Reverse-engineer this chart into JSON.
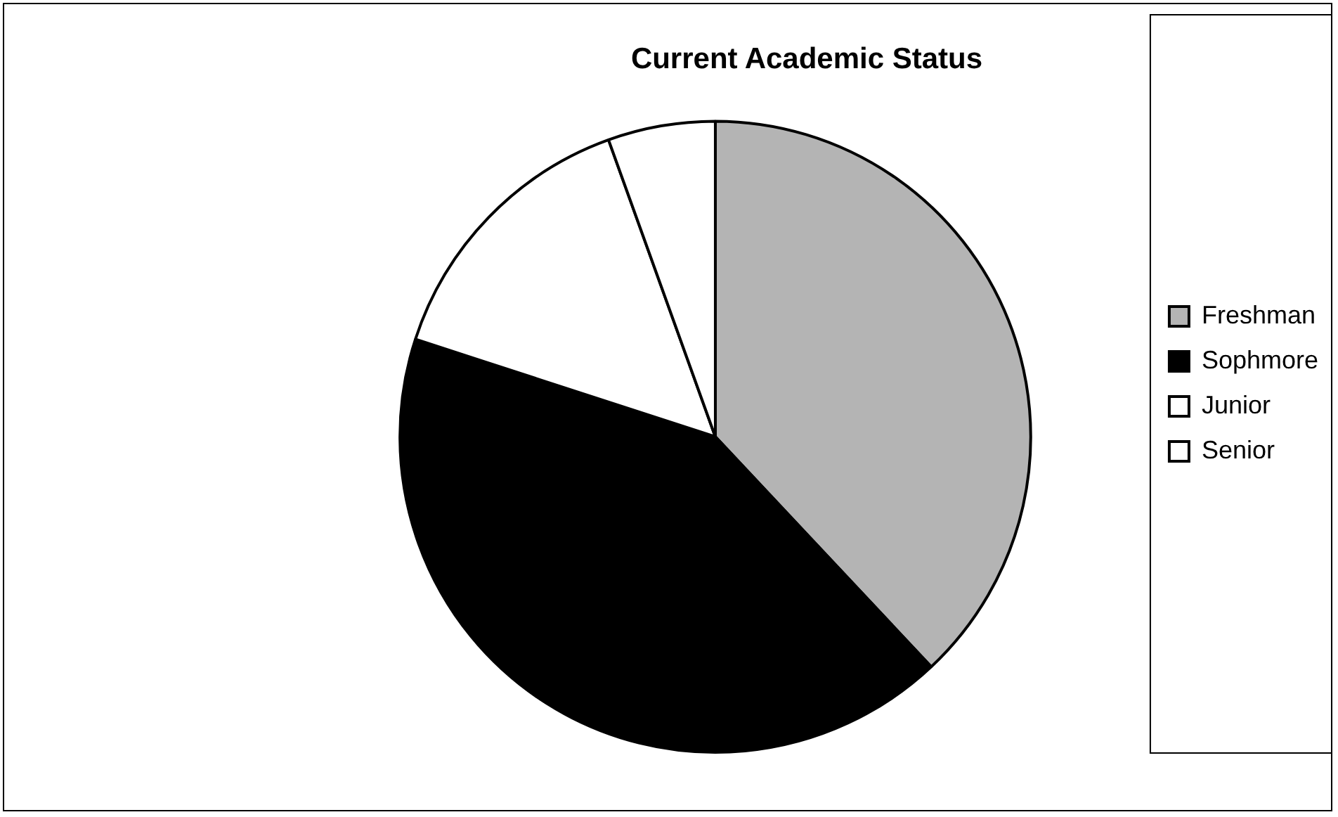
{
  "chart_data": {
    "type": "pie",
    "title": "Current Academic Status",
    "categories": [
      "Freshman",
      "Sophmore",
      "Junior",
      "Senior"
    ],
    "values": [
      38,
      42,
      14.5,
      5.5
    ],
    "colors": [
      "#b4b4b4",
      "#000000",
      "#ffffff",
      "#ffffff"
    ],
    "legend": "right"
  }
}
